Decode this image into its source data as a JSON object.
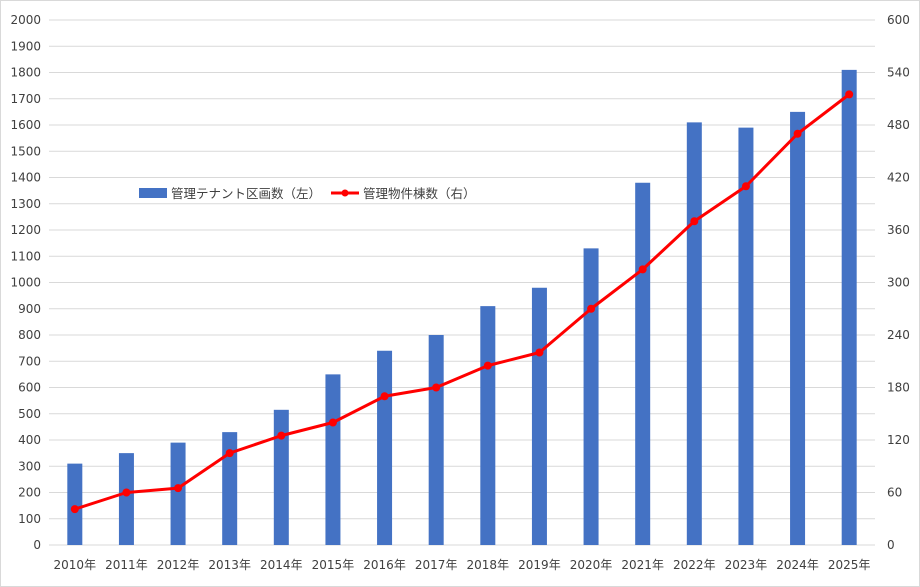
{
  "chart_data": {
    "type": "bar",
    "title": "",
    "categories": [
      "2010年",
      "2011年",
      "2012年",
      "2013年",
      "2014年",
      "2015年",
      "2016年",
      "2017年",
      "2018年",
      "2019年",
      "2020年",
      "2021年",
      "2022年",
      "2023年",
      "2024年",
      "2025年"
    ],
    "series": [
      {
        "name": "管理テナント区画数（左）",
        "type": "bar",
        "axis": "left",
        "color": "#4472c4",
        "values": [
          310,
          350,
          390,
          430,
          515,
          650,
          740,
          800,
          910,
          980,
          1130,
          1380,
          1610,
          1590,
          1650,
          1810
        ]
      },
      {
        "name": "管理物件棟数（右）",
        "type": "line",
        "axis": "right",
        "color": "#ff0000",
        "values": [
          41,
          60,
          65,
          105,
          125,
          140,
          170,
          180,
          205,
          220,
          270,
          315,
          370,
          410,
          470,
          515
        ]
      }
    ],
    "y_left": {
      "min": 0,
      "max": 2000,
      "ticks": [
        "0",
        "100",
        "200",
        "300",
        "400",
        "500",
        "600",
        "700",
        "800",
        "900",
        "1000",
        "1100",
        "1200",
        "1300",
        "1400",
        "1500",
        "1600",
        "1700",
        "1800",
        "1900",
        "2000"
      ]
    },
    "y_right": {
      "min": 0,
      "max": 600,
      "ticks": [
        "0",
        "60",
        "120",
        "180",
        "240",
        "300",
        "360",
        "420",
        "480",
        "540",
        "600"
      ]
    },
    "grid": true,
    "grid_color": "#d9d9d9",
    "legend": "inside-left"
  }
}
